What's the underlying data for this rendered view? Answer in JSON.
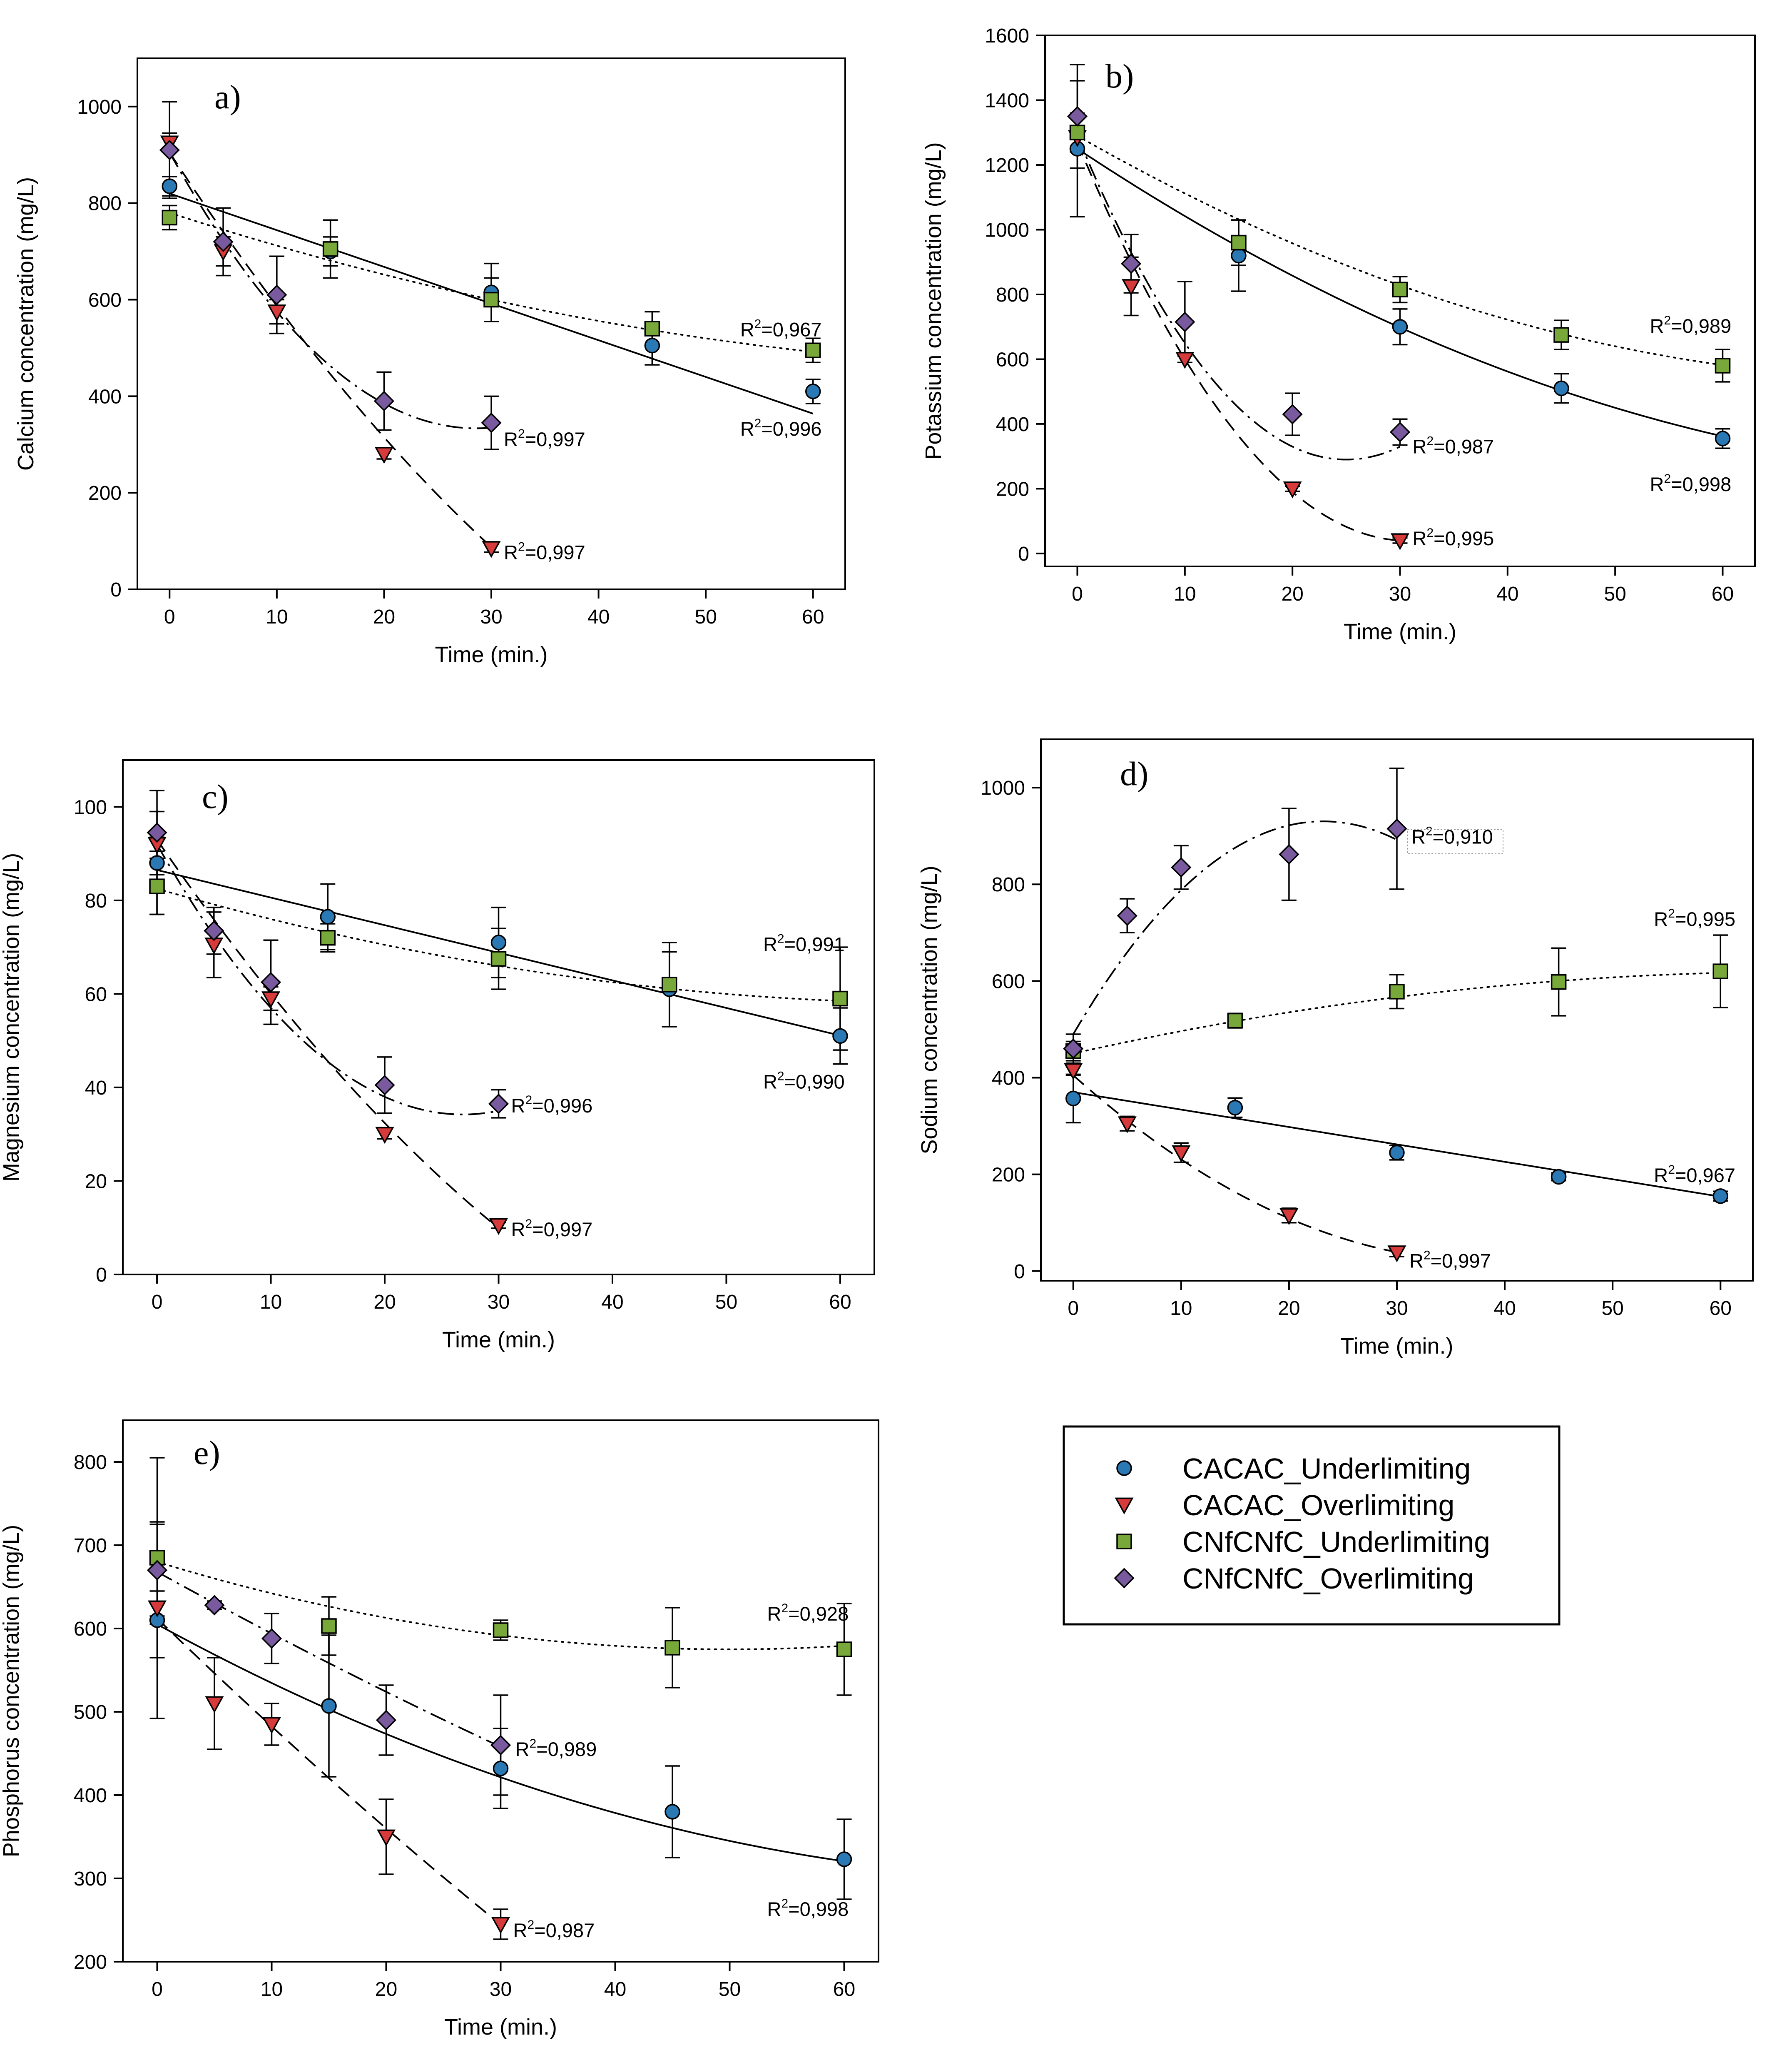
{
  "legend": [
    {
      "name": "CACAC_Underlimiting",
      "marker": "circle",
      "color": "#2a79b4"
    },
    {
      "name": "CACAC_Overlimiting",
      "marker": "triangle-down",
      "color": "#d63a3a"
    },
    {
      "name": "CNfCNfC_Underlimiting",
      "marker": "square",
      "color": "#78a83a"
    },
    {
      "name": "CNfCNfC_Overlimiting",
      "marker": "diamond",
      "color": "#7a5a9e"
    }
  ],
  "chart_data": [
    {
      "type": "scatter",
      "panel": "a)",
      "xlabel": "Time (min.)",
      "ylabel": "Calcium concentration (mg/L)",
      "xlim": [
        -3,
        63
      ],
      "ylim": [
        0,
        1100
      ],
      "xticks": [
        0,
        10,
        20,
        30,
        40,
        50,
        60
      ],
      "yticks": [
        0,
        200,
        400,
        600,
        800,
        1000
      ],
      "series": [
        {
          "name": "CACAC_Underlimiting",
          "x": [
            0,
            15,
            30,
            45,
            60
          ],
          "y": [
            835,
            700,
            615,
            505,
            410
          ],
          "err": [
            20,
            30,
            60,
            40,
            25
          ],
          "fit": [
            820,
            -7.6,
            0
          ],
          "r2": "R2=0,996"
        },
        {
          "name": "CACAC_Overlimiting",
          "x": [
            0,
            5,
            10,
            20,
            30
          ],
          "y": [
            925,
            700,
            575,
            280,
            85
          ],
          "err": [
            20,
            30,
            25,
            10,
            8
          ],
          "fit": [
            905,
            -34,
            0.225
          ],
          "r2": "R2=0,997"
        },
        {
          "name": "CNfCNfC_Underlimiting",
          "x": [
            0,
            15,
            30,
            45,
            60
          ],
          "y": [
            770,
            705,
            600,
            540,
            495
          ],
          "err": [
            25,
            60,
            45,
            35,
            25
          ],
          "fit": [
            780,
            -7.2,
            0.04
          ],
          "r2": "R2=0,967"
        },
        {
          "name": "CNfCNfC_Overlimiting",
          "x": [
            0,
            5,
            10,
            20,
            30
          ],
          "y": [
            910,
            720,
            610,
            390,
            345
          ],
          "err": [
            100,
            70,
            80,
            60,
            55
          ],
          "fit": [
            905,
            -40,
            0.7
          ],
          "r2": "R2=0,997"
        }
      ]
    },
    {
      "type": "scatter",
      "panel": "b)",
      "xlabel": "Time (min.)",
      "ylabel": "Potassium concentration (mg/L)",
      "xlim": [
        -3,
        63
      ],
      "ylim": [
        -40,
        1600
      ],
      "xticks": [
        0,
        10,
        20,
        30,
        40,
        50,
        60
      ],
      "yticks": [
        0,
        200,
        400,
        600,
        800,
        1000,
        1200,
        1400,
        1600
      ],
      "series": [
        {
          "name": "CACAC_Underlimiting",
          "x": [
            0,
            15,
            30,
            45,
            60
          ],
          "y": [
            1250,
            920,
            700,
            510,
            355
          ],
          "err": [
            210,
            110,
            55,
            45,
            30
          ],
          "fit": [
            1250,
            -22,
            0.12
          ],
          "r2": "R2=0,998"
        },
        {
          "name": "CACAC_Overlimiting",
          "x": [
            0,
            5,
            10,
            20,
            30
          ],
          "y": [
            1285,
            825,
            600,
            200,
            40
          ],
          "err": [
            30,
            90,
            10,
            8,
            8
          ],
          "fit": [
            1270,
            -80,
            1.3
          ],
          "r2": "R2=0,995"
        },
        {
          "name": "CNfCNfC_Underlimiting",
          "x": [
            0,
            15,
            30,
            45,
            60
          ],
          "y": [
            1300,
            960,
            815,
            675,
            580
          ],
          "err": [
            60,
            70,
            40,
            45,
            50
          ],
          "fit": [
            1290,
            -19,
            0.12
          ],
          "r2": "R2=0,989"
        },
        {
          "name": "CNfCNfC_Overlimiting",
          "x": [
            0,
            5,
            10,
            20,
            30
          ],
          "y": [
            1350,
            895,
            715,
            430,
            375
          ],
          "err": [
            160,
            90,
            125,
            65,
            40
          ],
          "fit": [
            1290,
            -80,
            1.6
          ],
          "r2": "R2=0,987"
        }
      ]
    },
    {
      "type": "scatter",
      "panel": "c)",
      "xlabel": "Time (min.)",
      "ylabel": "Magnesium concentration (mg/L)",
      "xlim": [
        -3,
        63
      ],
      "ylim": [
        0,
        110
      ],
      "xticks": [
        0,
        10,
        20,
        30,
        40,
        50,
        60
      ],
      "yticks": [
        0,
        20,
        40,
        60,
        80,
        100
      ],
      "series": [
        {
          "name": "CACAC_Underlimiting",
          "x": [
            0,
            15,
            30,
            45,
            60
          ],
          "y": [
            88,
            76.5,
            71,
            61,
            51
          ],
          "err": [
            11,
            7,
            7.5,
            8,
            6
          ],
          "fit": [
            86.5,
            -0.59,
            0
          ],
          "r2": "R2=0,990"
        },
        {
          "name": "CACAC_Overlimiting",
          "x": [
            0,
            5,
            10,
            20,
            30
          ],
          "y": [
            92,
            70.5,
            59,
            30,
            10.5
          ],
          "err": [
            1.5,
            7,
            2.5,
            1,
            0.6
          ],
          "fit": [
            93,
            -3.55,
            0.026
          ],
          "r2": "R2=0,997"
        },
        {
          "name": "CNfCNfC_Underlimiting",
          "x": [
            0,
            15,
            30,
            45,
            60
          ],
          "y": [
            83,
            72,
            67.5,
            62,
            59
          ],
          "err": [
            6,
            3,
            6.5,
            9,
            11
          ],
          "fit": [
            82.5,
            -0.7,
            0.005
          ],
          "r2": "R2=0,991"
        },
        {
          "name": "CNfCNfC_Overlimiting",
          "x": [
            0,
            5,
            10,
            20,
            30
          ],
          "y": [
            94.5,
            73.5,
            62.5,
            40.5,
            36.5
          ],
          "err": [
            9,
            5,
            9,
            6,
            3
          ],
          "fit": [
            92,
            -4.3,
            0.08
          ],
          "r2": "R2=0,996"
        }
      ]
    },
    {
      "type": "scatter",
      "panel": "d)",
      "xlabel": "Time (min.)",
      "ylabel": "Sodium concentration (mg/L)",
      "xlim": [
        -3,
        63
      ],
      "ylim": [
        -20,
        1100
      ],
      "xticks": [
        0,
        10,
        20,
        30,
        40,
        50,
        60
      ],
      "yticks": [
        0,
        200,
        400,
        600,
        800,
        1000
      ],
      "series": [
        {
          "name": "CACAC_Underlimiting",
          "x": [
            0,
            15,
            30,
            45,
            60
          ],
          "y": [
            357,
            338,
            245,
            195,
            155
          ],
          "err": [
            50,
            20,
            15,
            8,
            10
          ],
          "fit": [
            370,
            -3.6,
            0
          ],
          "r2": "R2=0,967"
        },
        {
          "name": "CACAC_Overlimiting",
          "x": [
            0,
            5,
            10,
            20,
            30
          ],
          "y": [
            415,
            305,
            245,
            115,
            38
          ],
          "err": [
            10,
            15,
            20,
            15,
            8
          ],
          "fit": [
            405,
            -20,
            0.26
          ],
          "r2": "R2=0,997"
        },
        {
          "name": "CNfCNfC_Underlimiting",
          "x": [
            0,
            15,
            30,
            45,
            60
          ],
          "y": [
            455,
            518,
            578,
            598,
            620
          ],
          "err": [
            20,
            15,
            35,
            70,
            75
          ],
          "fit": [
            450,
            5,
            -0.037
          ],
          "r2": "R2=0,995"
        },
        {
          "name": "CNfCNfC_Overlimiting",
          "x": [
            0,
            5,
            10,
            20,
            30
          ],
          "y": [
            460,
            735,
            835,
            862,
            915
          ],
          "err": [
            30,
            35,
            45,
            95,
            125
          ],
          "fit": [
            490,
            38,
            -0.82
          ],
          "r2": "R2=0,910"
        }
      ]
    },
    {
      "type": "scatter",
      "panel": "e)",
      "xlabel": "Time (min.)",
      "ylabel": "Phosphorus concentration (mg/L)",
      "xlim": [
        -3,
        63
      ],
      "ylim": [
        200,
        850
      ],
      "xticks": [
        0,
        10,
        20,
        30,
        40,
        50,
        60
      ],
      "yticks": [
        200,
        300,
        400,
        500,
        600,
        700,
        800
      ],
      "series": [
        {
          "name": "CACAC_Underlimiting",
          "x": [
            0,
            15,
            30,
            45,
            60
          ],
          "y": [
            610,
            507,
            432,
            380,
            323
          ],
          "err": [
            118,
            85,
            48,
            55,
            48
          ],
          "fit": [
            605,
            -7.5,
            0.046
          ],
          "r2": "R2=0,998"
        },
        {
          "name": "CACAC_Overlimiting",
          "x": [
            0,
            5,
            10,
            20,
            30
          ],
          "y": [
            625,
            510,
            485,
            350,
            245
          ],
          "err": [
            20,
            55,
            25,
            45,
            18
          ],
          "fit": [
            612,
            -13.3,
            0.035
          ],
          "r2": "R2=0,987"
        },
        {
          "name": "CNfCNfC_Underlimiting",
          "x": [
            0,
            15,
            30,
            45,
            60
          ],
          "y": [
            685,
            603,
            598,
            577,
            575
          ],
          "err": [
            120,
            35,
            12,
            48,
            55
          ],
          "fit": [
            680,
            -4.2,
            0.042
          ],
          "r2": "R2=0,928"
        },
        {
          "name": "CNfCNfC_Overlimiting",
          "x": [
            0,
            5,
            10,
            20,
            30
          ],
          "y": [
            670,
            628,
            588,
            490,
            460
          ],
          "err": [
            55,
            5,
            30,
            42,
            60
          ],
          "fit": [
            668,
            -7.6,
            0.02
          ],
          "r2": "R2=0,989"
        }
      ]
    }
  ]
}
